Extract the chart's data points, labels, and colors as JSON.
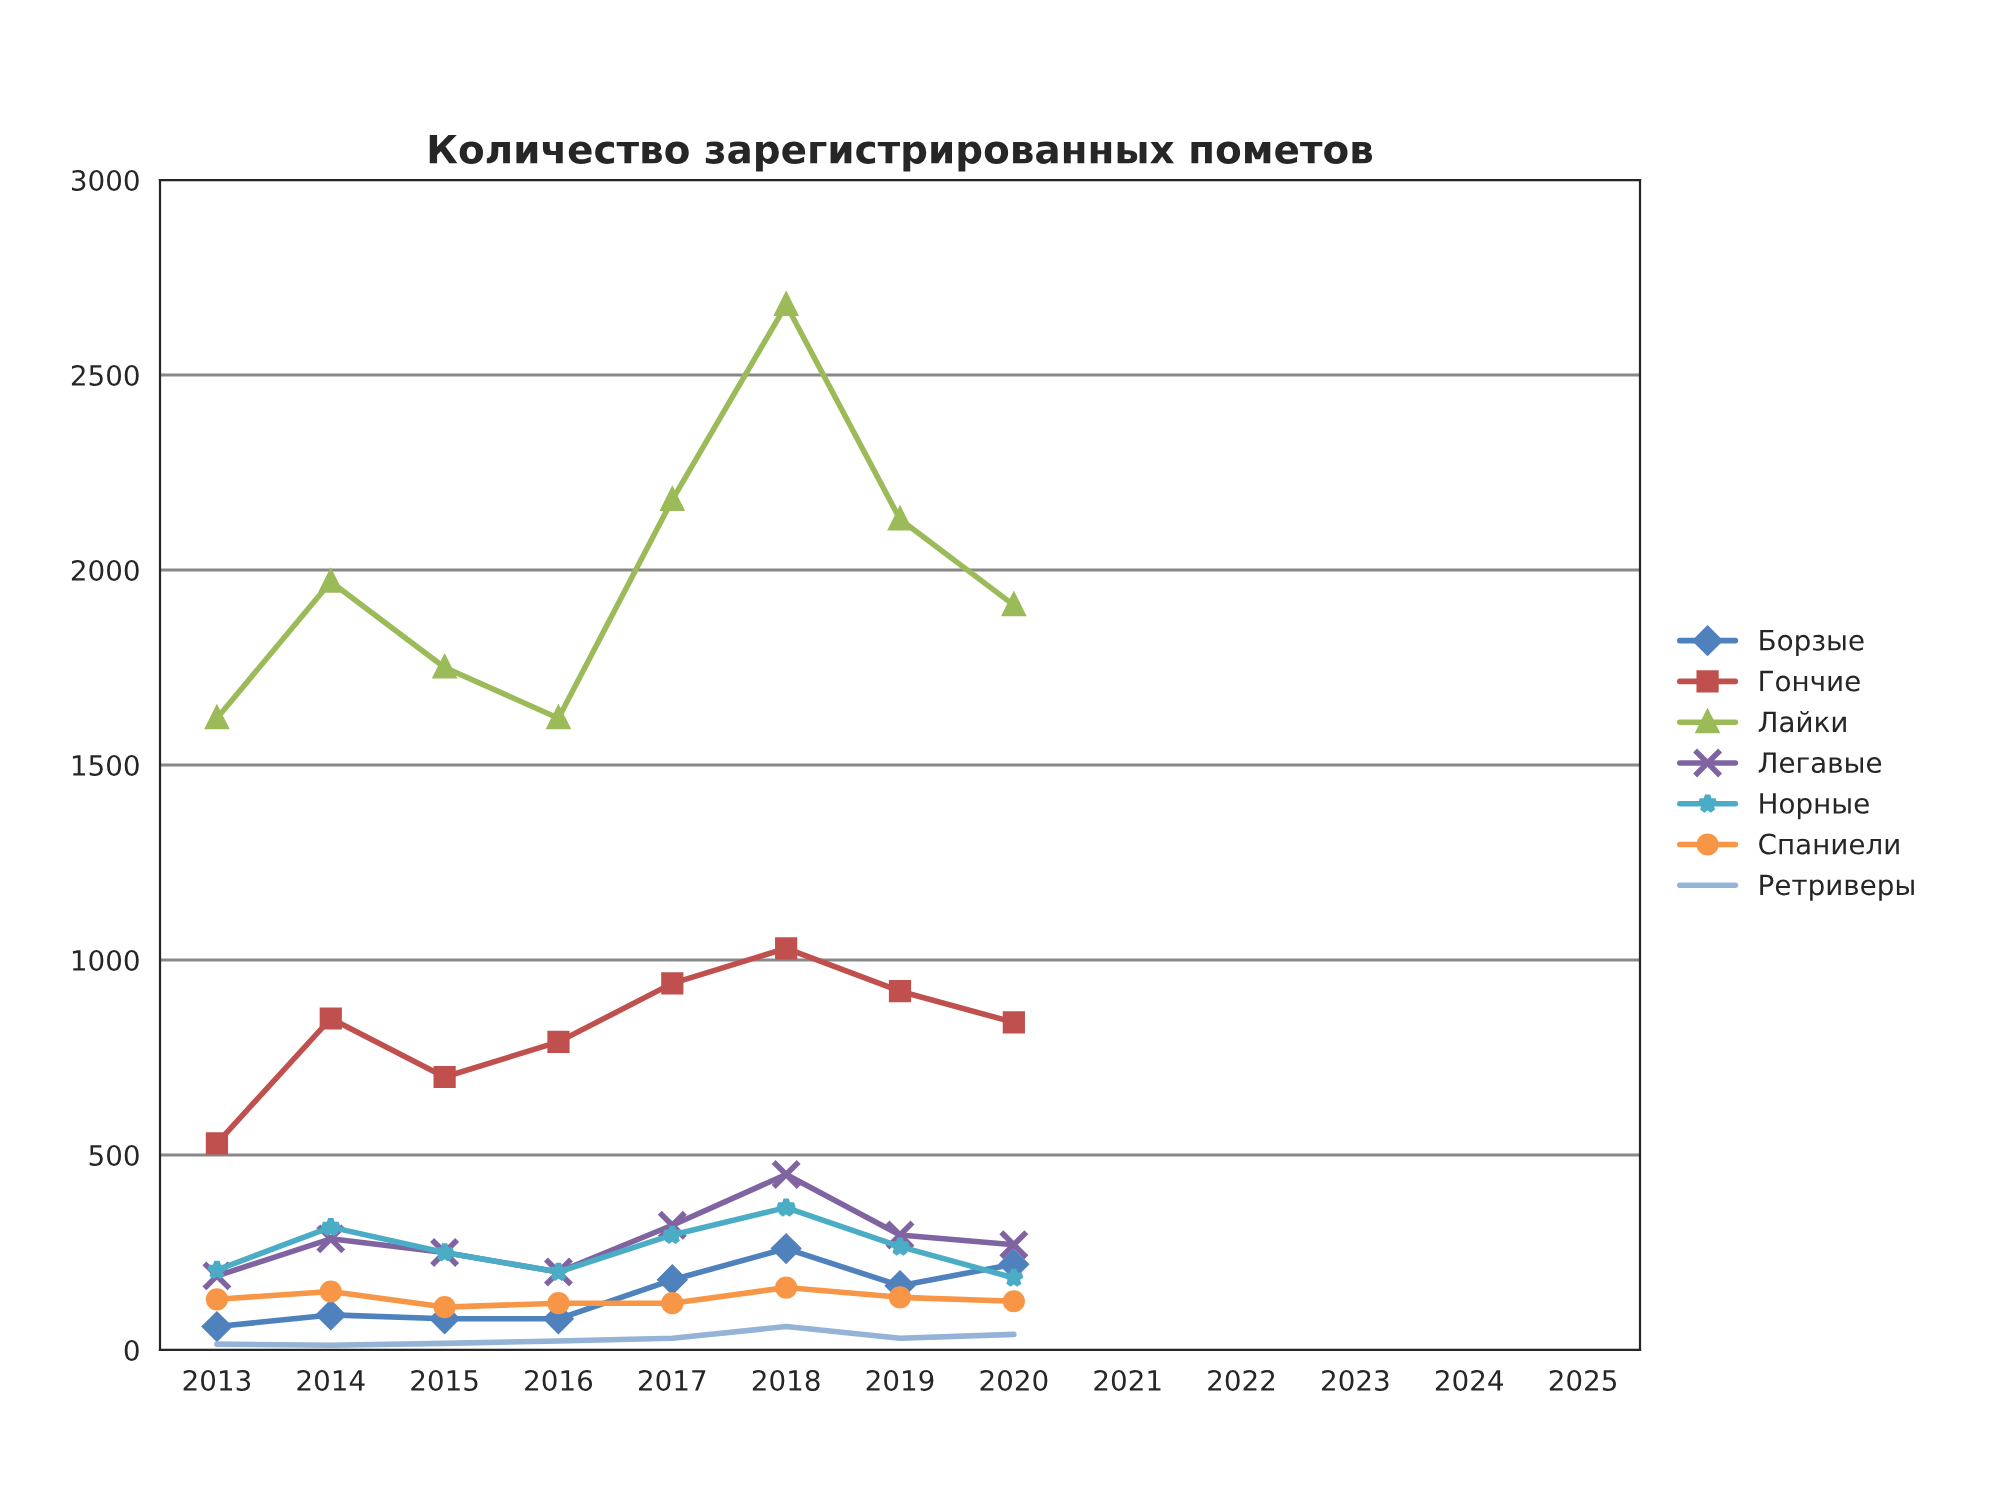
{
  "chart_data": {
    "type": "line",
    "title": "Количество зарегистрированных пометов",
    "categories": [
      "2013",
      "2014",
      "2015",
      "2016",
      "2017",
      "2018",
      "2019",
      "2020",
      "2021",
      "2022",
      "2023",
      "2024",
      "2025"
    ],
    "series": [
      {
        "name": "Борзые",
        "color": "#4f81bd",
        "marker": "diamond",
        "values": [
          60,
          90,
          80,
          80,
          180,
          260,
          165,
          220,
          null,
          null,
          null,
          null,
          null
        ]
      },
      {
        "name": "Гончие",
        "color": "#c0504d",
        "marker": "square",
        "values": [
          530,
          850,
          700,
          790,
          940,
          1030,
          920,
          840,
          null,
          null,
          null,
          null,
          null
        ]
      },
      {
        "name": "Лайки",
        "color": "#9bbb59",
        "marker": "triangle",
        "values": [
          1620,
          1970,
          1750,
          1620,
          2180,
          2680,
          2130,
          1910,
          null,
          null,
          null,
          null,
          null
        ]
      },
      {
        "name": "Легавые",
        "color": "#8064a2",
        "marker": "cross",
        "values": [
          190,
          285,
          250,
          200,
          320,
          450,
          295,
          270,
          null,
          null,
          null,
          null,
          null
        ]
      },
      {
        "name": "Норные",
        "color": "#4bacc6",
        "marker": "star",
        "values": [
          205,
          315,
          250,
          200,
          295,
          365,
          265,
          185,
          null,
          null,
          null,
          null,
          null
        ]
      },
      {
        "name": "Спаниели",
        "color": "#f79646",
        "marker": "circle",
        "values": [
          130,
          150,
          110,
          120,
          120,
          160,
          135,
          125,
          null,
          null,
          null,
          null,
          null
        ]
      },
      {
        "name": "Ретриверы",
        "color": "#95b3d7",
        "marker": "none",
        "values": [
          15,
          12,
          17,
          23,
          30,
          60,
          30,
          40,
          null,
          null,
          null,
          null,
          null
        ]
      }
    ],
    "ylim": [
      0,
      3000
    ],
    "yticks": [
      0,
      500,
      1000,
      1500,
      2000,
      2500,
      3000
    ],
    "grid": "y",
    "legend": "right",
    "line_style": "solid"
  }
}
